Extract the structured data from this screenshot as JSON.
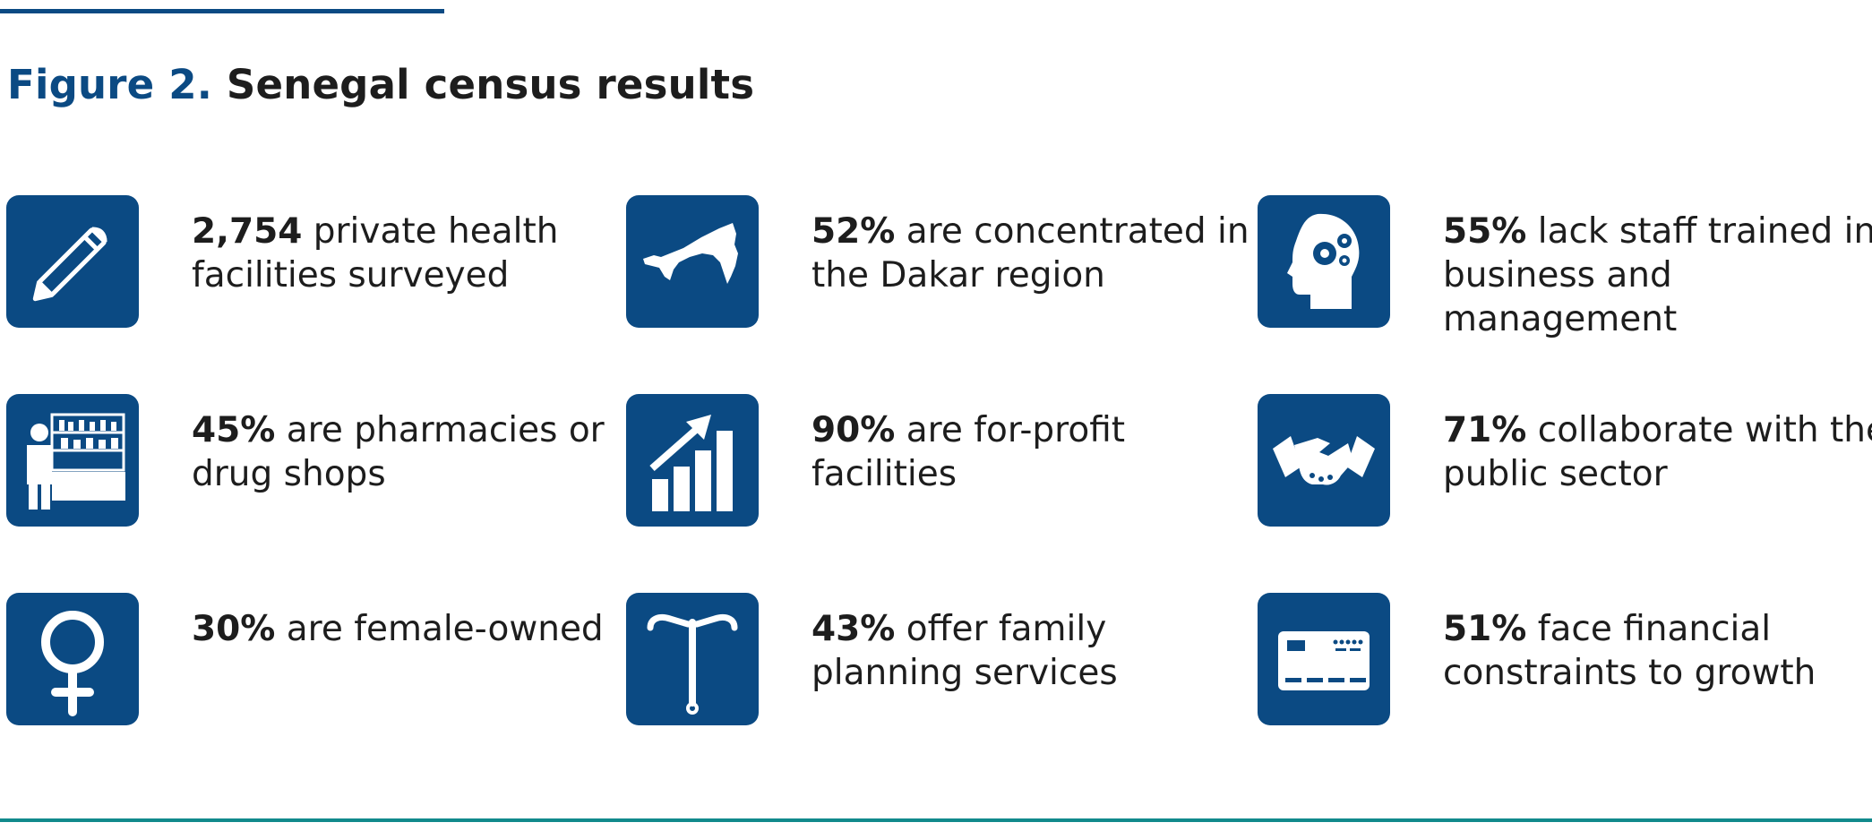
{
  "header": {
    "figure_label": "Figure 2.",
    "title": "Senegal census results"
  },
  "stats": [
    {
      "value": "2,754",
      "text": " private health facilities surveyed",
      "icon": "pencil-icon"
    },
    {
      "value": "52%",
      "text": " are concentrated in the Dakar region",
      "icon": "senegal-map-icon"
    },
    {
      "value": "55%",
      "text": " lack staff trained in business and management",
      "icon": "head-gears-icon"
    },
    {
      "value": "45%",
      "text": " are pharmacies or drug shops",
      "icon": "pharmacist-icon"
    },
    {
      "value": "90%",
      "text": " are for-profit facilities",
      "icon": "growth-chart-icon"
    },
    {
      "value": "71%",
      "text": " collaborate with the public sector",
      "icon": "handshake-icon"
    },
    {
      "value": "30%",
      "text": " are female-owned",
      "icon": "female-symbol-icon"
    },
    {
      "value": "43%",
      "text": " offer family planning services",
      "icon": "iud-icon"
    },
    {
      "value": "51%",
      "text": " face financial constraints to growth",
      "icon": "credit-card-icon"
    }
  ],
  "colors": {
    "primary": "#0b4a83",
    "accent_rule": "#118a8c",
    "text": "#1d1d1d"
  }
}
